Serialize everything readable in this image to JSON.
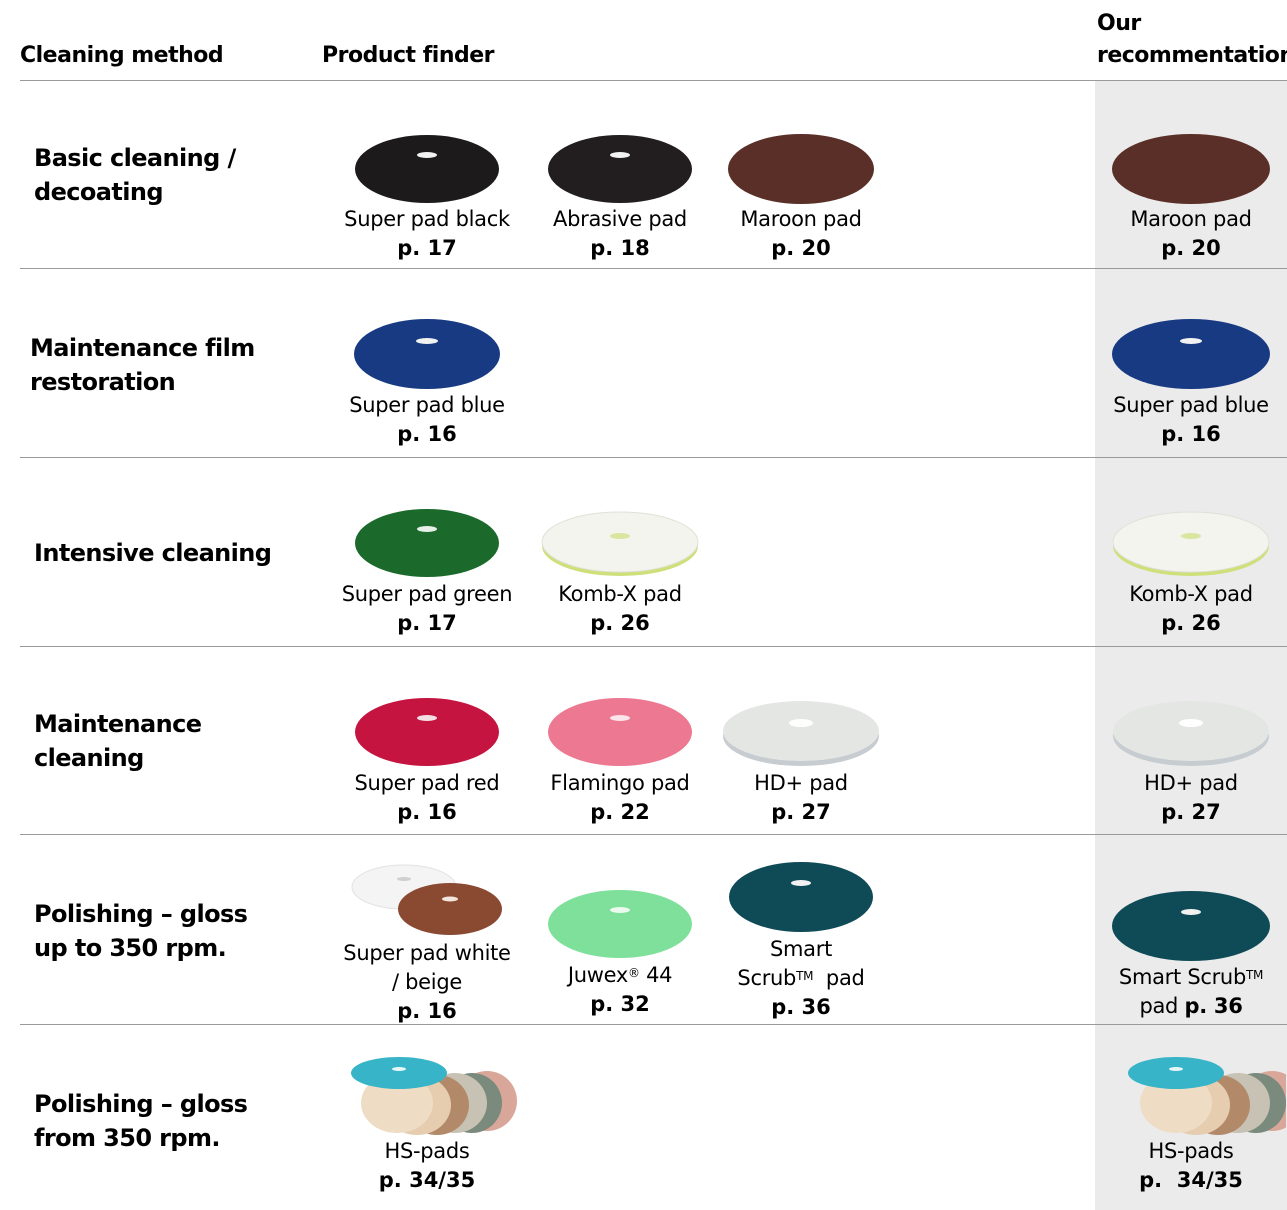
{
  "header": {
    "col_method": "Cleaning method",
    "col_finder": "Product finder",
    "col_rec": "Our recommentation"
  },
  "rows": [
    {
      "method": "Basic cleaning / decoating",
      "products": [
        {
          "name": "Super pad black",
          "page": "p. 17",
          "color": "#1c1a1a"
        },
        {
          "name": "Abrasive pad",
          "page": "p. 18",
          "color": "#221d1e"
        },
        {
          "name": "Maroon pad",
          "page": "p. 20",
          "color": "#5a2f27"
        }
      ],
      "rec": {
        "name": "Maroon pad",
        "page": "p. 20",
        "color": "#5a2f27"
      }
    },
    {
      "method": "Maintenance film restoration",
      "products": [
        {
          "name": "Super pad blue",
          "page": "p. 16",
          "color": "#173a82"
        }
      ],
      "rec": {
        "name": "Super pad blue",
        "page": "p. 16",
        "color": "#173a82"
      }
    },
    {
      "method": "Intensive cleaning",
      "products": [
        {
          "name": "Super pad green",
          "page": "p. 17",
          "color": "#1b6a2b"
        },
        {
          "name": "Komb-X pad",
          "page": "p. 26",
          "color": "#f4f4ee"
        }
      ],
      "rec": {
        "name": "Komb-X pad",
        "page": "p. 26",
        "color": "#f4f4ee"
      }
    },
    {
      "method": "Maintenance cleaning",
      "products": [
        {
          "name": "Super pad red",
          "page": "p. 16",
          "color": "#c4143f"
        },
        {
          "name": "Flamingo pad",
          "page": "p. 22",
          "color": "#ec7891"
        },
        {
          "name": "HD+ pad",
          "page": "p. 27",
          "color": "#e4e6e4"
        }
      ],
      "rec": {
        "name": "HD+ pad",
        "page": "p. 27",
        "color": "#e4e6e4"
      }
    },
    {
      "method": "Polishing – gloss up to 350 rpm.",
      "products": [
        {
          "name_line1": "Super pad white",
          "name_line2": "/ beige",
          "page": "p. 16",
          "color": "#f4f4f4",
          "color2": "#8a4a32"
        },
        {
          "name_pre": "Juwex",
          "name_sup": "®",
          "name_post": " 44",
          "page": "p. 32",
          "color": "#7ee09b"
        },
        {
          "name_line1": "Smart",
          "name_pre": "Scrub",
          "name_sup": "TM",
          "name_post": "  pad",
          "page": "p. 36",
          "color": "#0f4b57"
        }
      ],
      "rec": {
        "name_pre": "Smart Scrub",
        "name_sup": "TM",
        "name_line2": "pad",
        "page": "p. 36",
        "color": "#0f4b57"
      }
    },
    {
      "method": "Polishing – gloss from 350 rpm.",
      "products": [
        {
          "name": "HS-pads",
          "page": "p. 34/35"
        }
      ],
      "rec": {
        "name": "HS-pads",
        "page": "p.  34/35"
      }
    }
  ]
}
